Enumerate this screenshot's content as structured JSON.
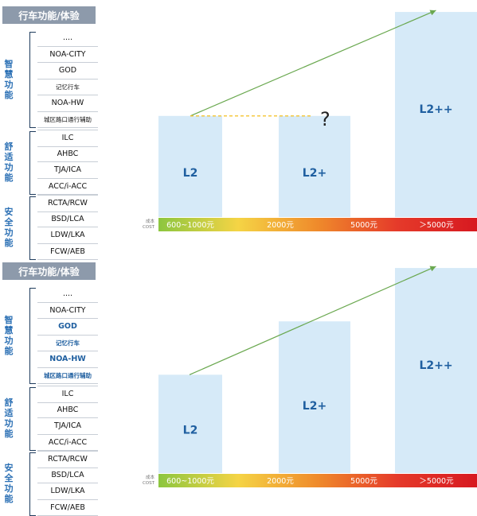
{
  "chart_data": [
    {
      "type": "bar",
      "panel": "top",
      "header": "行车功能/体验",
      "groups": [
        {
          "label": "智慧功能",
          "items": [
            {
              "text": "....",
              "style": "normal"
            },
            {
              "text": "NOA-CITY",
              "style": "normal"
            },
            {
              "text": "GOD",
              "style": "normal"
            },
            {
              "text": "记忆行车",
              "style": "small"
            },
            {
              "text": "NOA-HW",
              "style": "normal"
            },
            {
              "text": "城区路口通行辅助",
              "style": "small"
            }
          ]
        },
        {
          "label": "舒适功能",
          "items": [
            {
              "text": "ILC",
              "style": "normal"
            },
            {
              "text": "AHBC",
              "style": "normal"
            },
            {
              "text": "TJA/ICA",
              "style": "normal"
            },
            {
              "text": "ACC/i-ACC",
              "style": "normal"
            }
          ]
        },
        {
          "label": "安全功能",
          "items": [
            {
              "text": "RCTA/RCW",
              "style": "normal"
            },
            {
              "text": "BSD/LCA",
              "style": "normal"
            },
            {
              "text": "LDW/LKA",
              "style": "normal"
            },
            {
              "text": "FCW/AEB",
              "style": "normal"
            }
          ]
        }
      ],
      "categories": [
        "L2",
        "L2+",
        "L2++"
      ],
      "values": [
        36,
        36,
        73
      ],
      "ylim": [
        0,
        75
      ],
      "cost_axis_label": [
        "成本",
        "COST"
      ],
      "cost_labels": [
        "600~1000元",
        "2000元",
        "5000元",
        "＞5000元"
      ],
      "annotation": "?",
      "trend": [
        {
          "style": "solid",
          "from": 0,
          "to": 2
        },
        {
          "style": "dashed",
          "from": 0,
          "to": 1
        }
      ]
    },
    {
      "type": "bar",
      "panel": "bottom",
      "header": "行车功能/体验",
      "groups": [
        {
          "label": "智慧功能",
          "items": [
            {
              "text": "....",
              "style": "normal"
            },
            {
              "text": "NOA-CITY",
              "style": "normal"
            },
            {
              "text": "GOD",
              "style": "blue"
            },
            {
              "text": "记忆行车",
              "style": "small-blue"
            },
            {
              "text": "NOA-HW",
              "style": "blue"
            },
            {
              "text": "城区路口通行辅助",
              "style": "small-blue"
            }
          ]
        },
        {
          "label": "舒适功能",
          "items": [
            {
              "text": "ILC",
              "style": "normal"
            },
            {
              "text": "AHBC",
              "style": "normal"
            },
            {
              "text": "TJA/ICA",
              "style": "normal"
            },
            {
              "text": "ACC/i-ACC",
              "style": "normal"
            }
          ]
        },
        {
          "label": "安全功能",
          "items": [
            {
              "text": "RCTA/RCW",
              "style": "normal"
            },
            {
              "text": "BSD/LCA",
              "style": "normal"
            },
            {
              "text": "LDW/LKA",
              "style": "normal"
            },
            {
              "text": "FCW/AEB",
              "style": "normal"
            }
          ]
        }
      ],
      "categories": [
        "L2",
        "L2+",
        "L2++"
      ],
      "values": [
        35,
        54,
        73
      ],
      "ylim": [
        0,
        75
      ],
      "cost_axis_label": [
        "成本",
        "COST"
      ],
      "cost_labels": [
        "600~1000元",
        "2000元",
        "5000元",
        "＞5000元"
      ],
      "annotation": "",
      "trend": [
        {
          "style": "solid",
          "from": 0,
          "to": 2
        }
      ]
    }
  ],
  "colors": {
    "bar_fill": "#d6eaf8",
    "bar_label": "#1f5fa0",
    "header_bg": "#8d9aab",
    "group_label": "#2a6fb4",
    "trend_line": "#6aa84f",
    "dashed_line": "#f4c430",
    "cost_gradient": [
      "#8cc63f",
      "#f5d445",
      "#ef8a2b",
      "#e53a2a",
      "#d71920"
    ]
  }
}
